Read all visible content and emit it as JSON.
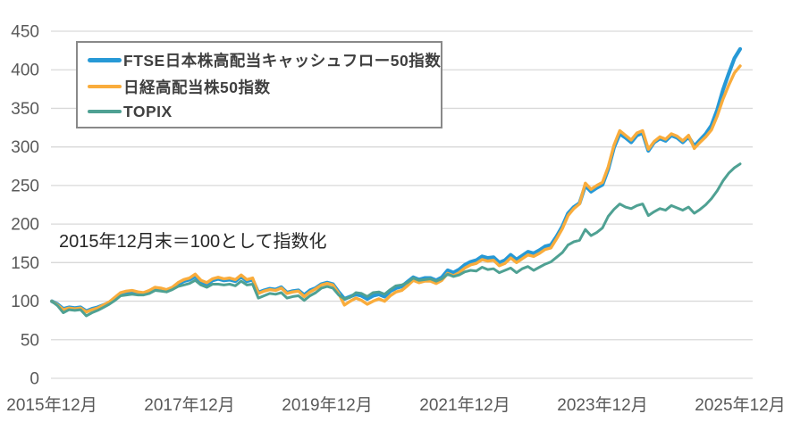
{
  "colors": {
    "background": "#ffffff",
    "gridline": "#d9d9d9",
    "axis_label": "#595959",
    "legend_border": "#898989",
    "legend_text": "#3f3f3f",
    "annotation_text": "#262626",
    "series_blue": "#2799d6",
    "series_orange": "#f9ac3c",
    "series_teal": "#4fa193"
  },
  "chart_data": {
    "type": "line",
    "title": "",
    "annotation": "2015年12月末＝100として指数化",
    "x_start": "2015-12",
    "x_end": "2025-12",
    "frequency": "monthly",
    "xlabel": "",
    "ylabel": "",
    "ylim": [
      0,
      450
    ],
    "grid": "horizontal-only",
    "legend_position": "top-left-inside",
    "y_ticks": [
      0,
      50,
      100,
      150,
      200,
      250,
      300,
      350,
      400,
      450
    ],
    "x_tick_labels": [
      "2015年12月",
      "2017年12月",
      "2019年12月",
      "2021年12月",
      "2023年12月",
      "2025年12月"
    ],
    "x_tick_month_index": [
      0,
      24,
      48,
      72,
      96,
      120
    ],
    "series": [
      {
        "name": "FTSE日本株高配当キャッシュフロー50指数",
        "color": "#2799d6",
        "line_width": 4.2,
        "legend_swatch_height": 5,
        "values": [
          100,
          96,
          90,
          92,
          91,
          92,
          87,
          90,
          92,
          95,
          98,
          104,
          110,
          112,
          112,
          111,
          110,
          113,
          117,
          116,
          114,
          117,
          122,
          126,
          128,
          132,
          125,
          122,
          127,
          129,
          127,
          128,
          126,
          132,
          126,
          128,
          111,
          114,
          116,
          115,
          118,
          111,
          113,
          114,
          108,
          114,
          117,
          122,
          124,
          122,
          112,
          103,
          106,
          109,
          107,
          103,
          107,
          109,
          106,
          113,
          117,
          119,
          125,
          131,
          128,
          130,
          130,
          127,
          131,
          140,
          137,
          141,
          147,
          151,
          153,
          158,
          156,
          157,
          150,
          153,
          160,
          154,
          159,
          164,
          162,
          166,
          171,
          173,
          184,
          197,
          214,
          222,
          227,
          250,
          242,
          247,
          251,
          271,
          299,
          317,
          312,
          306,
          315,
          318,
          295,
          306,
          311,
          308,
          315,
          312,
          306,
          313,
          301,
          309,
          317,
          328,
          348,
          374,
          395,
          415,
          427
        ]
      },
      {
        "name": "日経高配当株50指数",
        "color": "#f9ac3c",
        "line_width": 3.4,
        "legend_swatch_height": 4,
        "values": [
          100,
          95,
          89,
          91,
          90,
          91,
          86,
          89,
          91,
          95,
          99,
          105,
          111,
          113,
          114,
          112,
          111,
          114,
          118,
          117,
          115,
          118,
          124,
          128,
          130,
          135,
          127,
          124,
          129,
          131,
          129,
          130,
          128,
          134,
          128,
          130,
          110,
          113,
          115,
          114,
          117,
          110,
          112,
          113,
          106,
          112,
          116,
          121,
          123,
          121,
          110,
          95,
          100,
          104,
          101,
          96,
          100,
          103,
          100,
          107,
          112,
          114,
          120,
          127,
          124,
          126,
          126,
          123,
          127,
          136,
          133,
          137,
          143,
          147,
          149,
          154,
          152,
          153,
          146,
          149,
          156,
          150,
          155,
          160,
          158,
          162,
          167,
          169,
          181,
          194,
          211,
          220,
          226,
          253,
          245,
          250,
          254,
          274,
          302,
          321,
          315,
          309,
          318,
          321,
          297,
          307,
          313,
          310,
          317,
          314,
          308,
          315,
          298,
          306,
          313,
          322,
          340,
          362,
          380,
          396,
          405
        ]
      },
      {
        "name": "TOPIX",
        "color": "#4fa193",
        "line_width": 3.0,
        "legend_swatch_height": 3.5,
        "values": [
          100,
          94,
          85,
          89,
          88,
          89,
          81,
          85,
          88,
          92,
          96,
          101,
          107,
          108,
          109,
          108,
          108,
          110,
          114,
          113,
          112,
          115,
          119,
          121,
          123,
          127,
          121,
          118,
          122,
          122,
          121,
          122,
          120,
          126,
          121,
          122,
          104,
          107,
          110,
          109,
          111,
          104,
          106,
          107,
          101,
          107,
          111,
          117,
          119,
          117,
          108,
          103,
          105,
          111,
          110,
          106,
          111,
          112,
          109,
          115,
          120,
          121,
          124,
          130,
          127,
          128,
          129,
          126,
          129,
          135,
          132,
          134,
          138,
          140,
          139,
          144,
          141,
          142,
          137,
          140,
          143,
          137,
          142,
          145,
          140,
          144,
          148,
          151,
          157,
          163,
          173,
          177,
          179,
          193,
          185,
          189,
          195,
          210,
          219,
          226,
          222,
          220,
          224,
          226,
          211,
          216,
          220,
          218,
          224,
          221,
          218,
          222,
          214,
          219,
          225,
          233,
          243,
          256,
          266,
          273,
          278
        ]
      }
    ]
  }
}
